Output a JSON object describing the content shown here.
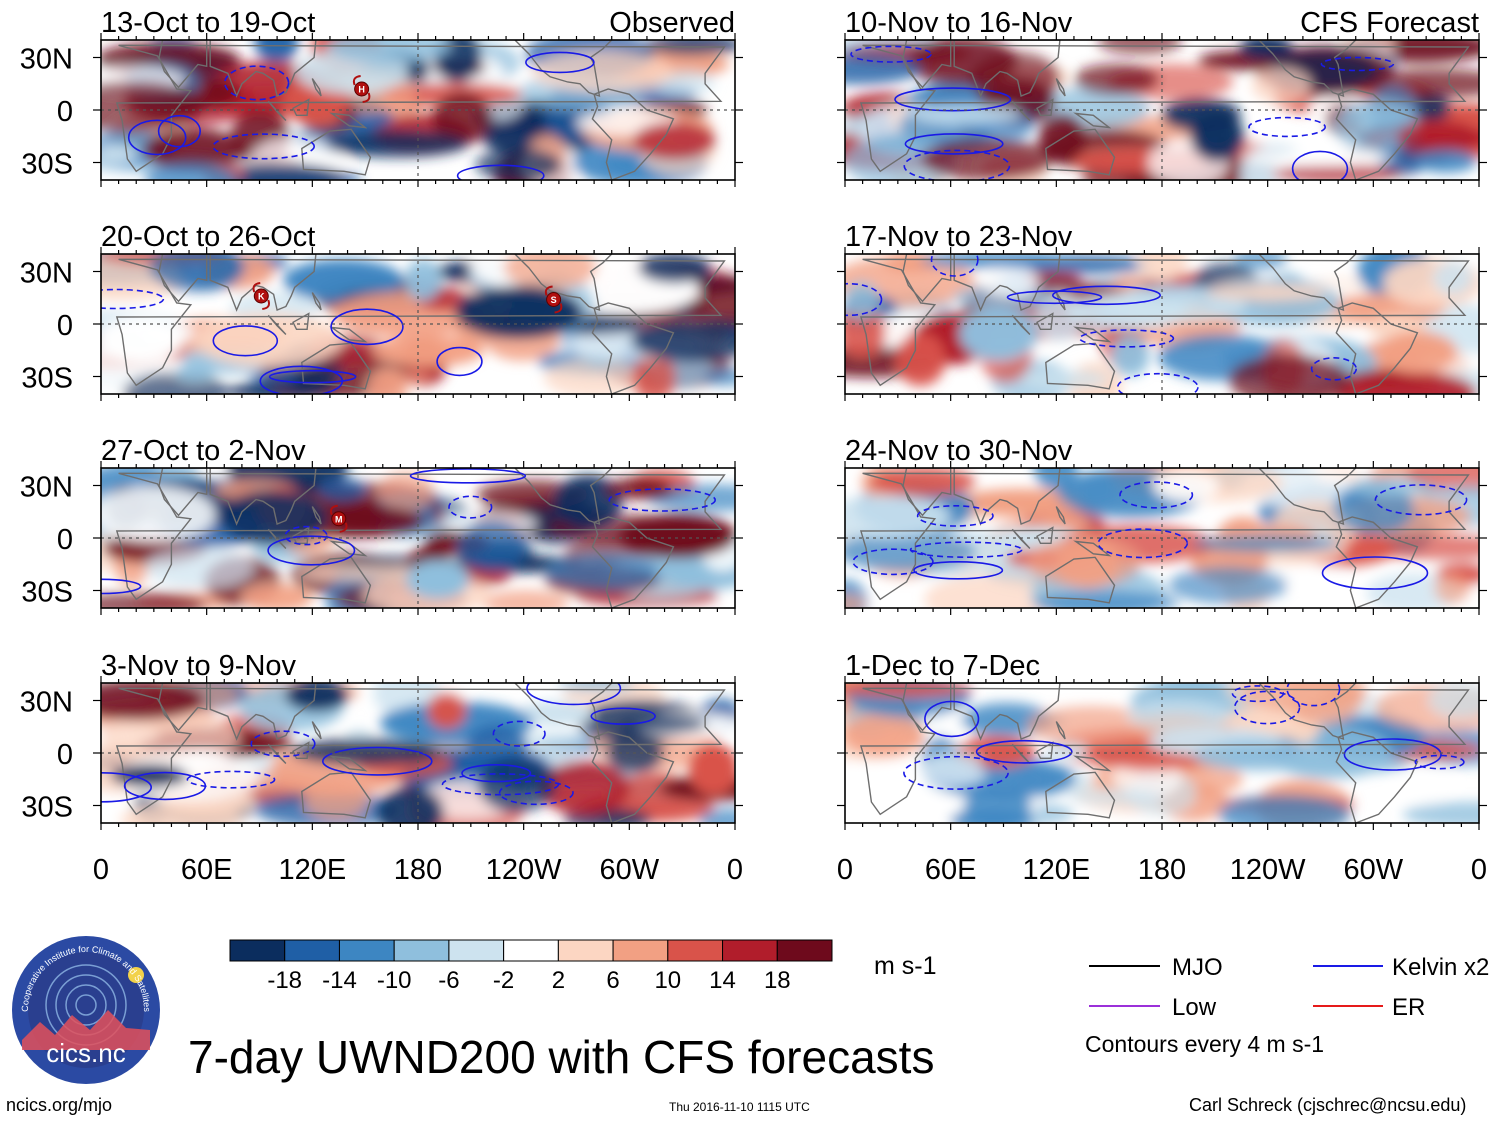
{
  "figure": {
    "title": "7-day UWND200 with CFS forecasts",
    "left_column_label": "Observed",
    "right_column_label": "CFS Forecast",
    "units": "m s-1",
    "lat_labels": [
      "30N",
      "0",
      "30S"
    ],
    "lon_labels": [
      "0",
      "60E",
      "120E",
      "180",
      "120W",
      "60W",
      "0"
    ],
    "observed_panels": [
      {
        "title": "13-Oct to 19-Oct",
        "storms": [
          {
            "letter": "H",
            "lon": 148,
            "lat": 12
          }
        ]
      },
      {
        "title": "20-Oct to 26-Oct",
        "storms": [
          {
            "letter": "K",
            "lon": 91,
            "lat": 16
          },
          {
            "letter": "S",
            "lon": 257,
            "lat": 14
          }
        ]
      },
      {
        "title": "27-Oct to 2-Nov",
        "storms": [
          {
            "letter": "M",
            "lon": 135,
            "lat": 11
          }
        ]
      },
      {
        "title": "3-Nov to 9-Nov",
        "storms": []
      }
    ],
    "forecast_panels": [
      {
        "title": "10-Nov to 16-Nov",
        "intensity": 1.0
      },
      {
        "title": "17-Nov to 23-Nov",
        "intensity": 0.8
      },
      {
        "title": "24-Nov to 30-Nov",
        "intensity": 0.55
      },
      {
        "title": "1-Dec to 7-Dec",
        "intensity": 0.5
      }
    ]
  },
  "colorbar": {
    "colors": [
      "#0b2d5e",
      "#1f5fa6",
      "#3d86c2",
      "#8fbfdd",
      "#cde3ef",
      "#ffffff",
      "#fcd6c2",
      "#f2a083",
      "#d9534a",
      "#b11d2b",
      "#6e0a1c"
    ],
    "tick_labels": [
      "-18",
      "-14",
      "-10",
      "-6",
      "-2",
      "2",
      "6",
      "10",
      "14",
      "18"
    ],
    "units": "m s-1"
  },
  "legend": {
    "items": [
      {
        "label": "MJO",
        "color": "#000000"
      },
      {
        "label": "Kelvin x2",
        "color": "#1a1ae6"
      },
      {
        "label": "Low",
        "color": "#9b30d9"
      },
      {
        "label": "ER",
        "color": "#e61a1a"
      }
    ],
    "note": "Contours every 4 m s-1"
  },
  "logo": {
    "name": "cics.nc",
    "ring_text": "Cooperative Institute for Climate and Satellites"
  },
  "footer": {
    "left": "ncics.org/mjo",
    "center": "Thu 2016-11-10 1115 UTC",
    "right": "Carl Schreck (cjschrec@ncsu.edu)"
  },
  "icons": [
    "tropical-storm-icon",
    "cics-logo-icon"
  ]
}
